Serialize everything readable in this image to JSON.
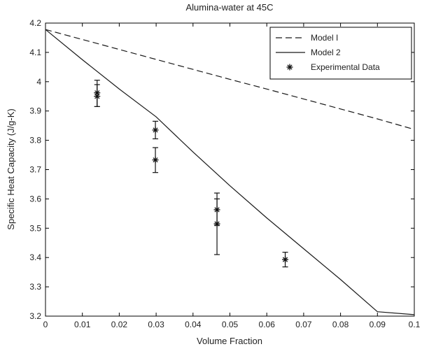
{
  "chart_data": {
    "type": "line",
    "title": "Alumina-water at 45C",
    "xlabel": "Volume Fraction",
    "ylabel": "Specific Heat Capacity (J/g-K)",
    "xlim": [
      0,
      0.1
    ],
    "ylim": [
      3.2,
      4.2
    ],
    "xticks": [
      0,
      0.01,
      0.02,
      0.03,
      0.04,
      0.05,
      0.06,
      0.07,
      0.08,
      0.09,
      0.1
    ],
    "xtick_labels": [
      "0",
      "0.01",
      "0.02",
      "0.03",
      "0.04",
      "0.05",
      "0.06",
      "0.07",
      "0.08",
      "0.09",
      "0.1"
    ],
    "yticks": [
      3.2,
      3.3,
      3.4,
      3.5,
      3.6,
      3.7,
      3.8,
      3.9,
      4.0,
      4.1,
      4.2
    ],
    "ytick_labels": [
      "3.2",
      "3.3",
      "3.4",
      "3.5",
      "3.6",
      "3.7",
      "3.8",
      "3.9",
      "4",
      "4.1",
      "4.2"
    ],
    "grid": false,
    "legend_position": "top-right",
    "series": [
      {
        "name": "Model I",
        "style": "dashed",
        "color": "#1a1a1a",
        "x": [
          0,
          0.01,
          0.02,
          0.03,
          0.04,
          0.05,
          0.06,
          0.07,
          0.08,
          0.09,
          0.1
        ],
        "y": [
          4.178,
          4.144,
          4.11,
          4.076,
          4.042,
          4.008,
          3.975,
          3.941,
          3.907,
          3.873,
          3.837
        ]
      },
      {
        "name": "Model 2",
        "style": "solid",
        "color": "#1a1a1a",
        "x": [
          0,
          0.01,
          0.02,
          0.03,
          0.04,
          0.05,
          0.06,
          0.07,
          0.08,
          0.09,
          0.1
        ],
        "y": [
          4.178,
          4.075,
          3.975,
          3.88,
          3.76,
          3.645,
          3.535,
          3.43,
          3.325,
          3.215,
          3.205
        ]
      },
      {
        "name": "Experimental Data",
        "style": "markers-errorbars",
        "color": "#1a1a1a",
        "points": [
          {
            "x": 0.014,
            "y": 3.962,
            "err_low": 3.915,
            "err_high": 4.005
          },
          {
            "x": 0.014,
            "y": 3.95,
            "err_low": 3.915,
            "err_high": 3.99
          },
          {
            "x": 0.0298,
            "y": 3.835,
            "err_low": 3.805,
            "err_high": 3.865
          },
          {
            "x": 0.0298,
            "y": 3.733,
            "err_low": 3.69,
            "err_high": 3.775
          },
          {
            "x": 0.0465,
            "y": 3.563,
            "err_low": 3.51,
            "err_high": 3.62
          },
          {
            "x": 0.0465,
            "y": 3.515,
            "err_low": 3.41,
            "err_high": 3.6
          },
          {
            "x": 0.065,
            "y": 3.393,
            "err_low": 3.368,
            "err_high": 3.418
          }
        ]
      }
    ]
  }
}
